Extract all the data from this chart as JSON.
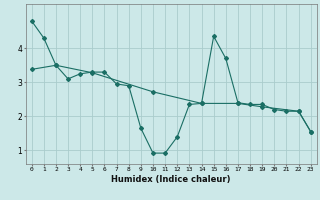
{
  "xlabel": "Humidex (Indice chaleur)",
  "background_color": "#cce8e8",
  "grid_color": "#aacccc",
  "line_color": "#1a6e64",
  "xlim": [
    -0.5,
    23.5
  ],
  "ylim": [
    0.6,
    5.3
  ],
  "yticks": [
    1,
    2,
    3,
    4
  ],
  "xticks": [
    0,
    1,
    2,
    3,
    4,
    5,
    6,
    7,
    8,
    9,
    10,
    11,
    12,
    13,
    14,
    15,
    16,
    17,
    18,
    19,
    20,
    21,
    22,
    23
  ],
  "series1_x": [
    0,
    1,
    2,
    3,
    4,
    5,
    6,
    7,
    8,
    9,
    10,
    11,
    12,
    13,
    14,
    15,
    16,
    17,
    18,
    19,
    20,
    21,
    22,
    23
  ],
  "series1_y": [
    4.8,
    4.3,
    3.5,
    3.1,
    3.25,
    3.3,
    3.3,
    2.95,
    2.9,
    1.65,
    0.92,
    0.92,
    1.4,
    2.35,
    2.38,
    4.35,
    3.7,
    2.4,
    2.35,
    2.35,
    2.2,
    2.15,
    2.15,
    1.55
  ],
  "series2_x": [
    0,
    2,
    5,
    10,
    14,
    17,
    19,
    22,
    23
  ],
  "series2_y": [
    3.38,
    3.5,
    3.28,
    2.72,
    2.38,
    2.38,
    2.28,
    2.15,
    1.55
  ]
}
